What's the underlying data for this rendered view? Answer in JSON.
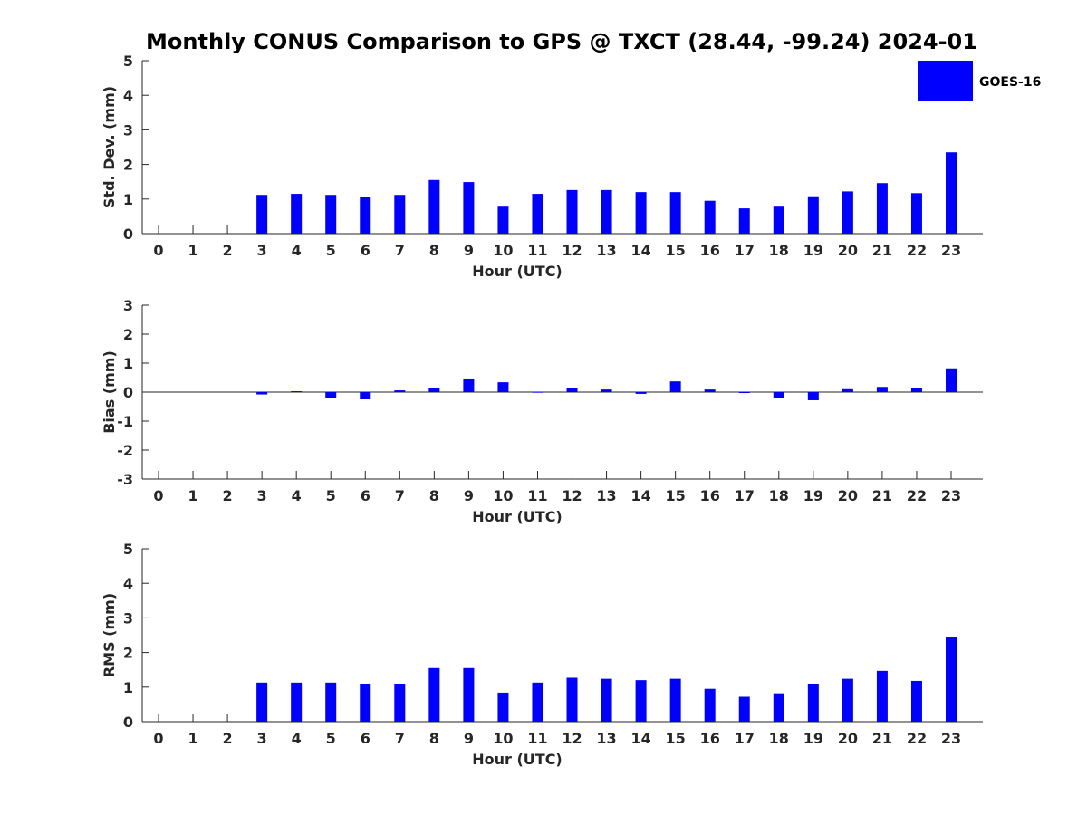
{
  "chart_data": {
    "title": "Monthly CONUS Comparison to GPS @ TXCT (28.44, -99.24) 2024-01",
    "legend": {
      "label": "GOES-16",
      "color": "#0000ff",
      "placement": "top-right"
    },
    "charts": [
      {
        "type": "bar",
        "ylabel": "Std. Dev. (mm)",
        "xlabel": "Hour (UTC)",
        "ylim": [
          0,
          5
        ],
        "yticks": [
          0,
          1,
          2,
          3,
          4,
          5
        ],
        "categories": [
          "0",
          "1",
          "2",
          "3",
          "4",
          "5",
          "6",
          "7",
          "8",
          "9",
          "10",
          "11",
          "12",
          "13",
          "14",
          "15",
          "16",
          "17",
          "18",
          "19",
          "20",
          "21",
          "22",
          "23"
        ],
        "series": [
          {
            "name": "GOES-16",
            "values": [
              null,
              null,
              null,
              1.12,
              1.15,
              1.12,
              1.07,
              1.12,
              1.55,
              1.49,
              0.78,
              1.15,
              1.26,
              1.26,
              1.2,
              1.2,
              0.95,
              0.73,
              0.78,
              1.08,
              1.22,
              1.46,
              1.17,
              2.35
            ]
          }
        ]
      },
      {
        "type": "bar",
        "ylabel": "Bias (mm)",
        "xlabel": "Hour (UTC)",
        "ylim": [
          -3,
          3
        ],
        "yticks": [
          -3,
          -2,
          -1,
          0,
          1,
          2,
          3
        ],
        "categories": [
          "0",
          "1",
          "2",
          "3",
          "4",
          "5",
          "6",
          "7",
          "8",
          "9",
          "10",
          "11",
          "12",
          "13",
          "14",
          "15",
          "16",
          "17",
          "18",
          "19",
          "20",
          "21",
          "22",
          "23"
        ],
        "series": [
          {
            "name": "GOES-16",
            "values": [
              null,
              null,
              null,
              -0.08,
              0.03,
              -0.2,
              -0.25,
              0.06,
              0.15,
              0.47,
              0.34,
              0.01,
              0.15,
              0.09,
              -0.06,
              0.37,
              0.09,
              -0.02,
              -0.2,
              -0.28,
              0.1,
              0.18,
              0.13,
              0.82
            ]
          }
        ]
      },
      {
        "type": "bar",
        "ylabel": "RMS (mm)",
        "xlabel": "Hour (UTC)",
        "ylim": [
          0,
          5
        ],
        "yticks": [
          0,
          1,
          2,
          3,
          4,
          5
        ],
        "categories": [
          "0",
          "1",
          "2",
          "3",
          "4",
          "5",
          "6",
          "7",
          "8",
          "9",
          "10",
          "11",
          "12",
          "13",
          "14",
          "15",
          "16",
          "17",
          "18",
          "19",
          "20",
          "21",
          "22",
          "23"
        ],
        "series": [
          {
            "name": "GOES-16",
            "values": [
              null,
              null,
              null,
              1.13,
              1.13,
              1.13,
              1.1,
              1.1,
              1.55,
              1.55,
              0.84,
              1.13,
              1.27,
              1.24,
              1.2,
              1.24,
              0.95,
              0.72,
              0.82,
              1.1,
              1.24,
              1.47,
              1.18,
              2.46
            ]
          }
        ]
      }
    ]
  }
}
